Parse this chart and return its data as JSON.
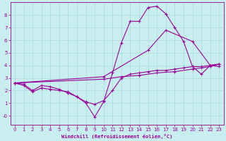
{
  "xlabel": "Windchill (Refroidissement éolien,°C)",
  "bg_color": "#c8eef0",
  "line_color": "#990099",
  "grid_color": "#aadcdc",
  "xlim": [
    -0.5,
    23.5
  ],
  "ylim": [
    -0.7,
    9.0
  ],
  "xticks": [
    0,
    1,
    2,
    3,
    4,
    5,
    6,
    7,
    8,
    9,
    10,
    11,
    12,
    13,
    14,
    15,
    16,
    17,
    18,
    19,
    20,
    21,
    22,
    23
  ],
  "yticks": [
    0,
    1,
    2,
    3,
    4,
    5,
    6,
    7,
    8
  ],
  "lines": [
    {
      "x": [
        0,
        1,
        2,
        3,
        4,
        5,
        6,
        7,
        8,
        9,
        10,
        11,
        12,
        13,
        14,
        15,
        16,
        17,
        18,
        19,
        20,
        21,
        22,
        23
      ],
      "y": [
        2.6,
        2.5,
        2.0,
        2.4,
        2.3,
        2.1,
        1.8,
        1.5,
        1.0,
        -0.1,
        1.1,
        3.4,
        5.8,
        7.5,
        7.5,
        8.6,
        8.7,
        8.1,
        7.0,
        5.9,
        3.9,
        3.3,
        4.0,
        3.9
      ]
    },
    {
      "x": [
        0,
        10,
        15,
        17,
        20,
        22,
        23
      ],
      "y": [
        2.6,
        3.1,
        5.2,
        6.8,
        5.9,
        4.0,
        4.1
      ]
    },
    {
      "x": [
        0,
        10,
        12,
        14,
        16,
        18,
        20,
        21,
        22,
        23
      ],
      "y": [
        2.6,
        2.9,
        3.1,
        3.2,
        3.4,
        3.5,
        3.7,
        3.8,
        3.9,
        4.1
      ]
    },
    {
      "x": [
        0,
        1,
        2,
        3,
        4,
        5,
        6,
        7,
        8,
        9,
        10,
        11,
        12,
        13,
        14,
        15,
        16,
        17,
        18,
        19,
        20,
        21,
        22,
        23
      ],
      "y": [
        2.6,
        2.4,
        1.9,
        2.2,
        2.1,
        2.0,
        1.9,
        1.5,
        1.1,
        0.9,
        1.2,
        2.0,
        3.0,
        3.3,
        3.4,
        3.5,
        3.6,
        3.6,
        3.7,
        3.8,
        3.9,
        3.9,
        4.0,
        4.1
      ]
    }
  ]
}
